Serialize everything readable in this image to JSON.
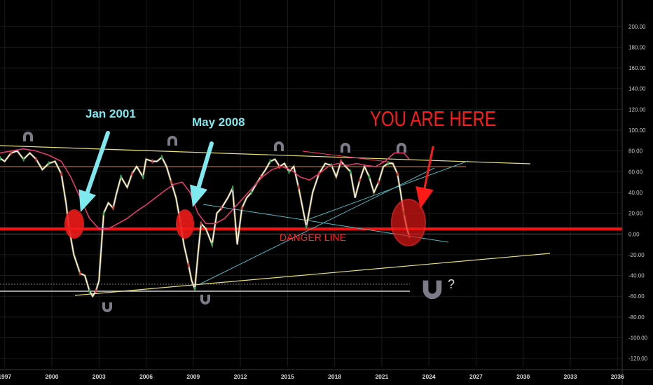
{
  "chart_data": {
    "type": "line",
    "title": "",
    "xlabel": "",
    "ylabel": "",
    "x_tick_labels": [
      "1997",
      "2000",
      "2003",
      "2006",
      "2009",
      "2012",
      "2015",
      "2018",
      "2021",
      "2024",
      "2027",
      "2030",
      "2033",
      "2036"
    ],
    "y_ticks": [
      200,
      180,
      160,
      140,
      120,
      100,
      80,
      60,
      40,
      20,
      0,
      -20,
      -40,
      -60,
      -80,
      -100,
      -120
    ],
    "y_tick_labels": [
      "200.00",
      "180.00",
      "160.00",
      "140.00",
      "120.00",
      "100.00",
      "80.00",
      "60.00",
      "40.00",
      "20.00",
      "0.00",
      "-20.00",
      "-40.00",
      "-60.00",
      "-80.00",
      "-100.00",
      "-120.00"
    ],
    "xlim": [
      1996.7,
      2036.3
    ],
    "ylim": [
      -128,
      212
    ],
    "grid": true,
    "series": [
      {
        "color": "#ffffff",
        "x": [
          1996.7,
          1997.0,
          1997.4,
          1997.8,
          1998.2,
          1998.6,
          1999.0,
          1999.4,
          1999.8,
          2000.2,
          2000.6,
          2000.9,
          2001.1,
          2001.4,
          2001.8,
          2002.1,
          2002.4,
          2002.6,
          2002.8,
          2003.0,
          2003.3,
          2003.6,
          2003.9,
          2004.1,
          2004.4,
          2004.8,
          2005.1,
          2005.4,
          2005.8,
          2006.0,
          2006.4,
          2006.7,
          2007.0,
          2007.3,
          2007.6,
          2007.9,
          2008.2,
          2008.4,
          2008.7,
          2008.9,
          2009.1,
          2009.3,
          2009.5,
          2009.8,
          2010.2,
          2010.5,
          2010.8,
          2011.2,
          2011.5,
          2011.8,
          2012.1,
          2012.4,
          2012.7,
          2013.0,
          2013.3,
          2013.6,
          2013.9,
          2014.2,
          2014.5,
          2014.8,
          2015.1,
          2015.4,
          2015.7,
          2015.9,
          2016.2,
          2016.6,
          2017.0,
          2017.4,
          2017.8,
          2018.1,
          2018.4,
          2018.7,
          2019.0,
          2019.3,
          2019.6,
          2019.9,
          2020.2,
          2020.5,
          2020.8,
          2021.1,
          2021.4,
          2021.7,
          2022.0,
          2022.2,
          2022.4,
          2022.6,
          2022.75
        ],
        "values": [
          73,
          70,
          78,
          80,
          72,
          78,
          72,
          62,
          68,
          70,
          58,
          30,
          5,
          -20,
          -38,
          -40,
          -55,
          -60,
          -55,
          -45,
          20,
          30,
          25,
          38,
          55,
          45,
          58,
          65,
          55,
          72,
          70,
          70,
          74,
          65,
          50,
          35,
          10,
          -10,
          -30,
          -45,
          -53,
          -20,
          10,
          5,
          -10,
          20,
          25,
          35,
          44,
          -10,
          25,
          35,
          40,
          48,
          55,
          62,
          70,
          72,
          65,
          68,
          60,
          65,
          45,
          30,
          7,
          40,
          58,
          68,
          66,
          55,
          70,
          65,
          60,
          35,
          52,
          65,
          55,
          40,
          50,
          65,
          68,
          68,
          58,
          40,
          20,
          5,
          -2
        ]
      },
      {
        "color": "#e03a6e",
        "x": [
          1996.7,
          1997.4,
          1998.2,
          1999.0,
          1999.8,
          2000.6,
          2001.2,
          2001.8,
          2002.4,
          2003.0,
          2003.6,
          2004.2,
          2004.8,
          2005.4,
          2006.0,
          2006.6,
          2007.2,
          2007.8,
          2008.3,
          2008.8,
          2009.3,
          2009.8,
          2010.4,
          2011.0,
          2011.6,
          2012.2,
          2012.8,
          2013.4,
          2014.0,
          2014.6,
          2015.2,
          2015.8,
          2016.4,
          2017.0,
          2017.6,
          2018.2,
          2018.8,
          2019.4,
          2020.0,
          2020.6,
          2021.2,
          2021.8,
          2022.4,
          2022.75
        ],
        "values": [
          78,
          80,
          82,
          80,
          76,
          70,
          55,
          35,
          15,
          5,
          5,
          10,
          15,
          22,
          28,
          35,
          42,
          48,
          50,
          40,
          20,
          10,
          10,
          15,
          25,
          35,
          45,
          55,
          62,
          65,
          62,
          55,
          52,
          58,
          65,
          68,
          66,
          68,
          66,
          65,
          70,
          78,
          78,
          72
        ]
      }
    ],
    "annotations": [
      {
        "text": "Jan 2001",
        "color": "#7fe9f0"
      },
      {
        "text": "May 2008",
        "color": "#7fe9f0"
      },
      {
        "text": "YOU ARE HERE",
        "color": "#ff1a1a"
      },
      {
        "text": "DANGER LINE",
        "color": "#ff2424"
      },
      {
        "text": "?",
        "color": "#dddddd"
      }
    ],
    "danger_line_value": 5
  }
}
